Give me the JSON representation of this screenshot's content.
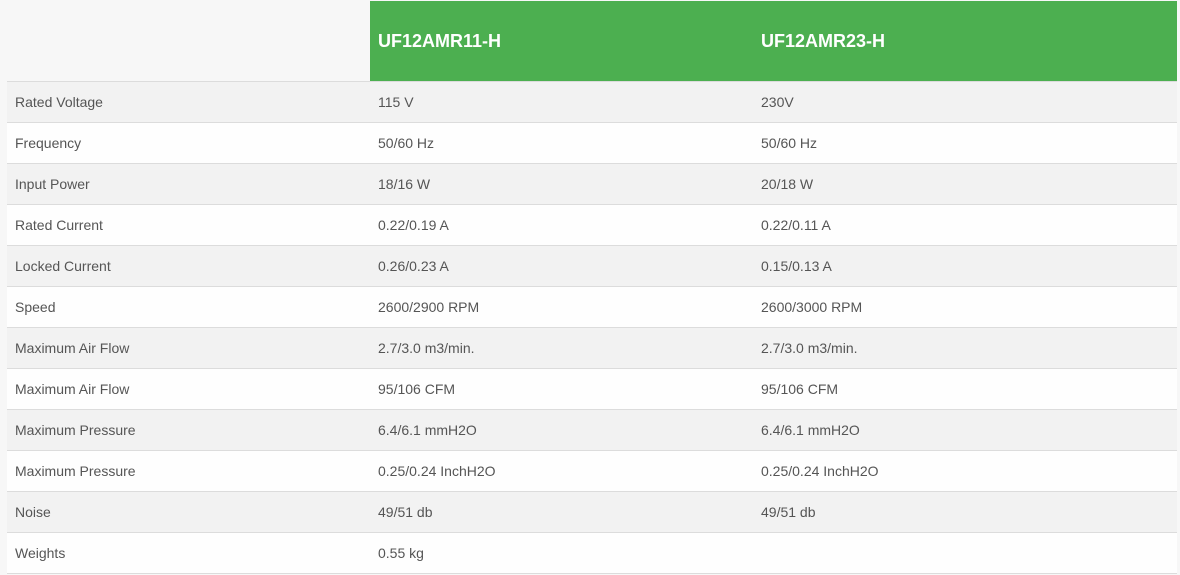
{
  "accent_color": "#4caf50",
  "columns": [
    "",
    "UF12AMR11-H",
    "UF12AMR23-H"
  ],
  "rows": [
    {
      "label": "Rated Voltage",
      "a": "115 V",
      "b": "230V"
    },
    {
      "label": "Frequency",
      "a": "50/60 Hz",
      "b": "50/60 Hz"
    },
    {
      "label": "Input Power",
      "a": "18/16 W",
      "b": "20/18 W"
    },
    {
      "label": "Rated Current",
      "a": "0.22/0.19 A",
      "b": "0.22/0.11 A"
    },
    {
      "label": "Locked Current",
      "a": "0.26/0.23 A",
      "b": "0.15/0.13 A"
    },
    {
      "label": "Speed",
      "a": "2600/2900 RPM",
      "b": "2600/3000 RPM"
    },
    {
      "label": "Maximum Air Flow",
      "a": "2.7/3.0 m3/min.",
      "b": "2.7/3.0 m3/min."
    },
    {
      "label": "Maximum Air Flow",
      "a": "95/106 CFM",
      "b": "95/106 CFM"
    },
    {
      "label": "Maximum Pressure",
      "a": "6.4/6.1 mmH2O",
      "b": "6.4/6.1 mmH2O"
    },
    {
      "label": "Maximum Pressure",
      "a": "0.25/0.24 InchH2O",
      "b": "0.25/0.24 InchH2O"
    },
    {
      "label": "Noise",
      "a": "49/51 db",
      "b": "49/51 db"
    },
    {
      "label": "Weights",
      "a": "0.55 kg",
      "b": ""
    }
  ]
}
